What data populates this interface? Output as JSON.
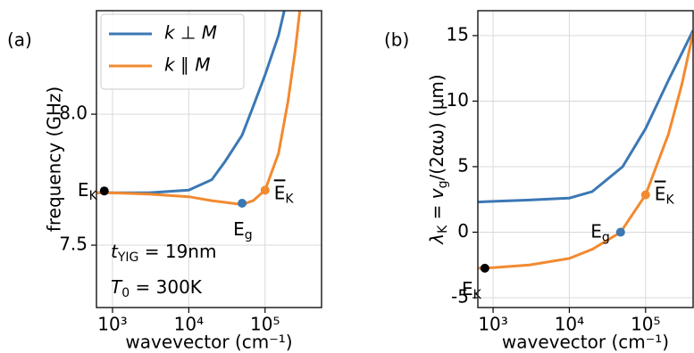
{
  "chart_data": [
    {
      "type": "line",
      "panel_label": "(a)",
      "xlabel": "wavevector (cm⁻¹)",
      "ylabel": "frequency (GHz)",
      "xscale": "log",
      "xlim": [
        616,
        550000
      ],
      "ylim": [
        7.262,
        8.395
      ],
      "xticks": [
        {
          "value": 1000,
          "label": "10³"
        },
        {
          "value": 10000,
          "label": "10⁴"
        },
        {
          "value": 100000,
          "label": "10⁵"
        }
      ],
      "yticks": [
        7.5,
        {
          "value": 8,
          "label": "8.0"
        }
      ],
      "grid": true,
      "legend": "upper left",
      "series": [
        {
          "name": "k ⊥ M",
          "color": "#3b78b4",
          "x": [
            616,
            1000,
            3000,
            10000,
            20000,
            30000,
            50000,
            70000,
            100000,
            150000,
            180000
          ],
          "values": [
            7.7,
            7.7,
            7.7,
            7.71,
            7.75,
            7.82,
            7.92,
            8.03,
            8.15,
            8.3,
            8.4
          ]
        },
        {
          "name": "k ∥ M",
          "color": "#f28a30",
          "x": [
            616,
            1000,
            3000,
            10000,
            20000,
            50000,
            70000,
            100000,
            150000,
            200000,
            250000,
            300000
          ],
          "values": [
            7.7,
            7.7,
            7.695,
            7.685,
            7.67,
            7.655,
            7.67,
            7.71,
            7.85,
            8.05,
            8.25,
            8.45
          ]
        }
      ],
      "points": [
        {
          "label": [
            {
              "text": "E"
            },
            {
              "text": "K",
              "sub": true
            }
          ],
          "x": 780,
          "y": 7.707,
          "color": "#000000"
        },
        {
          "label": [
            {
              "text": "E"
            },
            {
              "text": "g",
              "sub": true
            }
          ],
          "x": 50000,
          "y": 7.66,
          "color": "#3b78b4"
        },
        {
          "label": [
            {
              "text": "E",
              "overline": true
            },
            {
              "text": "K",
              "sub": true
            }
          ],
          "x": 100000,
          "y": 7.71,
          "color": "#f28a30"
        }
      ],
      "annotations": [
        [
          {
            "text": "t",
            "italic": true
          },
          {
            "text": "YIG",
            "sub": true
          },
          {
            "text": " = 19nm"
          }
        ],
        [
          {
            "text": "T",
            "italic": true
          },
          {
            "text": "0",
            "sub": true
          },
          {
            "text": " = 300K"
          }
        ]
      ]
    },
    {
      "type": "line",
      "panel_label": "(b)",
      "xlabel": "wavevector (cm⁻¹)",
      "ylabel": [
        {
          "text": "λ",
          "italic": true
        },
        {
          "text": "K",
          "sub": true
        },
        {
          "text": " = "
        },
        {
          "text": "v",
          "italic": true
        },
        {
          "text": "g",
          "sub": true
        },
        {
          "text": "/(2αω) (μm)"
        }
      ],
      "xscale": "log",
      "xlim": [
        631,
        420000
      ],
      "ylim": [
        -5.75,
        16.9
      ],
      "xticks": [
        {
          "value": 1000,
          "label": "10³"
        },
        {
          "value": 10000,
          "label": "10⁴"
        },
        {
          "value": 100000,
          "label": "10⁵"
        }
      ],
      "yticks": [
        -5,
        0,
        5,
        10,
        15
      ],
      "grid": true,
      "series": [
        {
          "name": "k ⊥ M",
          "color": "#3b78b4",
          "x": [
            631,
            1000,
            3000,
            10000,
            20000,
            50000,
            100000,
            200000,
            420000
          ],
          "values": [
            2.3,
            2.35,
            2.45,
            2.6,
            3.1,
            5.0,
            7.9,
            11.6,
            15.4
          ]
        },
        {
          "name": "k ∥ M",
          "color": "#f28a30",
          "x": [
            631,
            1000,
            3000,
            10000,
            20000,
            47000,
            100000,
            200000,
            300000,
            420000
          ],
          "values": [
            -2.75,
            -2.7,
            -2.5,
            -2.0,
            -1.3,
            0,
            2.85,
            7.5,
            11.3,
            15.2
          ]
        }
      ],
      "points": [
        {
          "label": [
            {
              "text": "E"
            },
            {
              "text": "K",
              "sub": true
            }
          ],
          "x": 780,
          "y": -2.75,
          "color": "#000000"
        },
        {
          "label": [
            {
              "text": "E"
            },
            {
              "text": "g",
              "sub": true
            }
          ],
          "x": 47000,
          "y": 0,
          "color": "#3b78b4"
        },
        {
          "label": [
            {
              "text": "E",
              "overline": true
            },
            {
              "text": "K",
              "sub": true
            }
          ],
          "x": 100000,
          "y": 2.85,
          "color": "#f28a30"
        }
      ]
    }
  ]
}
